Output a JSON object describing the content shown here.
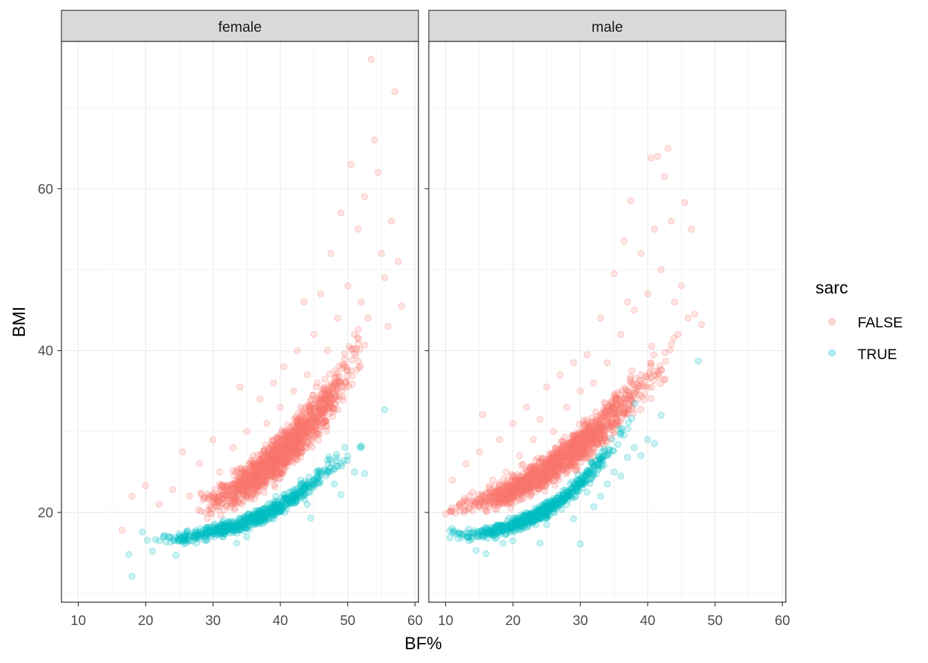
{
  "chart_data": {
    "type": "scatter",
    "xlabel": "BF%",
    "ylabel": "BMI",
    "xlim": [
      7.5,
      60.5
    ],
    "ylim": [
      8.9,
      78.2
    ],
    "x_ticks": [
      10,
      20,
      30,
      40,
      50,
      60
    ],
    "y_ticks": [
      20,
      40,
      60
    ],
    "grid": true,
    "facets": [
      {
        "label": "female",
        "series": [
          {
            "name": "FALSE",
            "points": [
              [
                16.5,
                17.8
              ],
              [
                18,
                22
              ],
              [
                20,
                23.3
              ],
              [
                22,
                21
              ],
              [
                24,
                22.8
              ],
              [
                25.5,
                27.5
              ],
              [
                26.5,
                22
              ],
              [
                28,
                26
              ],
              [
                30,
                29
              ],
              [
                31,
                25
              ],
              [
                33,
                28
              ],
              [
                34,
                35.5
              ],
              [
                35,
                30
              ],
              [
                36,
                27
              ],
              [
                37,
                34
              ],
              [
                38,
                31
              ],
              [
                39,
                36
              ],
              [
                40,
                33
              ],
              [
                40.5,
                38
              ],
              [
                41,
                30
              ],
              [
                42,
                35
              ],
              [
                42.5,
                40
              ],
              [
                43,
                33
              ],
              [
                43.5,
                46
              ],
              [
                44,
                37
              ],
              [
                44.5,
                31
              ],
              [
                45,
                42
              ],
              [
                45.5,
                36
              ],
              [
                46,
                47
              ],
              [
                46.5,
                34
              ],
              [
                47,
                40
              ],
              [
                47.5,
                52
              ],
              [
                48,
                36
              ],
              [
                48.5,
                44
              ],
              [
                49,
                57
              ],
              [
                49.5,
                38
              ],
              [
                50,
                48
              ],
              [
                50.5,
                63
              ],
              [
                51,
                42
              ],
              [
                51.5,
                55
              ],
              [
                52,
                46
              ],
              [
                52.5,
                59
              ],
              [
                53,
                44
              ],
              [
                53.5,
                76
              ],
              [
                54,
                66
              ],
              [
                54.5,
                62
              ],
              [
                55,
                52
              ],
              [
                55.5,
                49
              ],
              [
                56,
                43
              ],
              [
                56.5,
                56
              ],
              [
                57,
                72
              ],
              [
                57.5,
                51
              ],
              [
                58,
                45.5
              ]
            ]
          },
          {
            "name": "TRUE",
            "points": [
              [
                17.5,
                14.8
              ],
              [
                18,
                12.1
              ],
              [
                19.5,
                17.6
              ],
              [
                21,
                15.2
              ],
              [
                22,
                16.5
              ],
              [
                23.5,
                17
              ],
              [
                24.5,
                14.7
              ],
              [
                26,
                16.2
              ],
              [
                27.5,
                17
              ],
              [
                29,
                16.6
              ],
              [
                30.5,
                17.8
              ],
              [
                32,
                18.5
              ],
              [
                33.5,
                16.2
              ],
              [
                35,
                17
              ],
              [
                36,
                18.8
              ],
              [
                37,
                19
              ],
              [
                38,
                20.5
              ],
              [
                39,
                19.2
              ],
              [
                40,
                20.8
              ],
              [
                41,
                21.5
              ],
              [
                42,
                22
              ],
              [
                43,
                23.5
              ],
              [
                44,
                21
              ],
              [
                44.5,
                19.3
              ],
              [
                45,
                24
              ],
              [
                46,
                25
              ],
              [
                47,
                26.5
              ],
              [
                48,
                23.5
              ],
              [
                49,
                22.2
              ],
              [
                50,
                27
              ],
              [
                51,
                25
              ],
              [
                52,
                28
              ],
              [
                52.5,
                24.8
              ],
              [
                55.5,
                32.7
              ]
            ]
          }
        ]
      },
      {
        "label": "male",
        "series": [
          {
            "name": "FALSE",
            "points": [
              [
                10,
                19.8
              ],
              [
                11,
                24
              ],
              [
                12,
                21
              ],
              [
                13,
                26
              ],
              [
                14,
                22.5
              ],
              [
                15,
                27.5
              ],
              [
                15.5,
                32.1
              ],
              [
                17,
                24
              ],
              [
                18,
                29
              ],
              [
                19,
                25
              ],
              [
                20,
                31
              ],
              [
                21,
                27
              ],
              [
                22,
                33
              ],
              [
                23,
                29
              ],
              [
                24,
                31.5
              ],
              [
                25,
                35.5
              ],
              [
                26,
                30
              ],
              [
                27,
                37
              ],
              [
                28,
                33
              ],
              [
                29,
                38.5
              ],
              [
                30,
                35
              ],
              [
                31,
                39.5
              ],
              [
                32,
                36
              ],
              [
                33,
                44
              ],
              [
                34,
                38.5
              ],
              [
                35,
                49.5
              ],
              [
                36,
                42
              ],
              [
                36.5,
                53.5
              ],
              [
                37,
                46
              ],
              [
                37.5,
                58.5
              ],
              [
                38,
                45
              ],
              [
                39,
                52
              ],
              [
                40,
                47
              ],
              [
                40.5,
                63.8
              ],
              [
                41,
                55
              ],
              [
                41.5,
                64
              ],
              [
                42,
                50
              ],
              [
                42.5,
                61.5
              ],
              [
                43,
                65
              ],
              [
                43.5,
                56
              ],
              [
                44,
                46
              ],
              [
                44.5,
                42
              ],
              [
                45,
                48
              ],
              [
                45.5,
                58.3
              ],
              [
                46,
                44
              ],
              [
                46.5,
                55
              ],
              [
                47,
                44.5
              ],
              [
                48,
                43.2
              ]
            ]
          },
          {
            "name": "TRUE",
            "points": [
              [
                11,
                18
              ],
              [
                12,
                17.5
              ],
              [
                13.5,
                16.5
              ],
              [
                14.5,
                15.3
              ],
              [
                16,
                14.9
              ],
              [
                17,
                17.2
              ],
              [
                18.5,
                16.2
              ],
              [
                20,
                16.5
              ],
              [
                21,
                17.8
              ],
              [
                22.5,
                19
              ],
              [
                24,
                16.2
              ],
              [
                25,
                18.5
              ],
              [
                26,
                20
              ],
              [
                28,
                21
              ],
              [
                29,
                19.2
              ],
              [
                30,
                16.1
              ],
              [
                31,
                22.5
              ],
              [
                32,
                20.7
              ],
              [
                33,
                22
              ],
              [
                34,
                23.5
              ],
              [
                35,
                25
              ],
              [
                36,
                24.5
              ],
              [
                37,
                26.8
              ],
              [
                38,
                28
              ],
              [
                39,
                27
              ],
              [
                40,
                29
              ],
              [
                41,
                28.5
              ],
              [
                42,
                32
              ],
              [
                47.5,
                38.7
              ]
            ]
          }
        ]
      }
    ],
    "legend": {
      "title": "sarc",
      "placement": "right",
      "entries": [
        {
          "label": "FALSE",
          "color": "#F8766D"
        },
        {
          "label": "TRUE",
          "color": "#00BFC4"
        }
      ]
    },
    "colors": {
      "FALSE": "#F8766D",
      "TRUE": "#00BFC4"
    }
  }
}
